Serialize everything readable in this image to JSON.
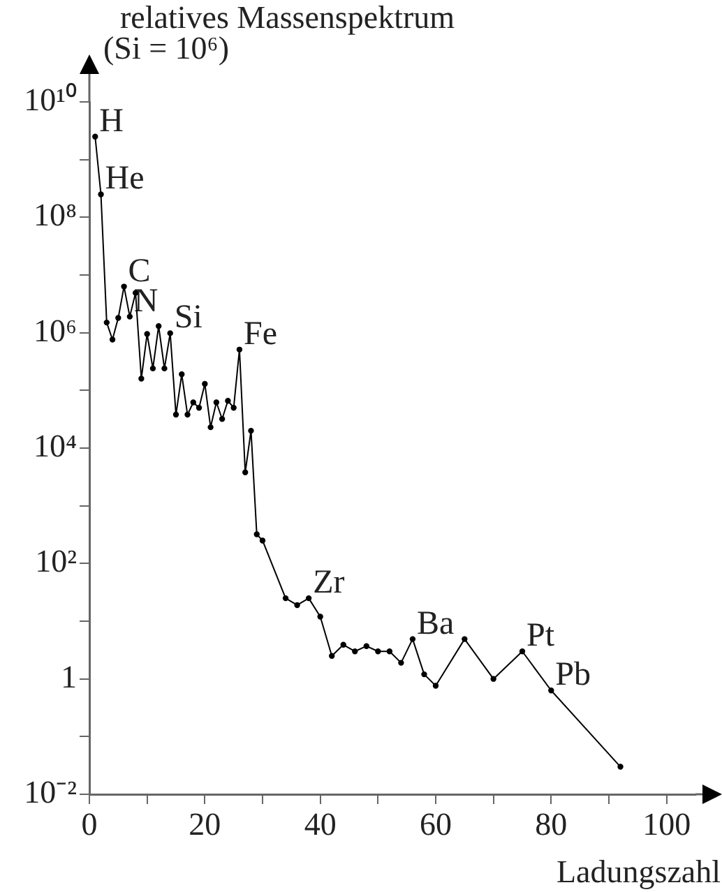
{
  "chart_data": {
    "type": "line",
    "title": "relatives Massenspektrum",
    "ylabel": "(Si = 10⁶)",
    "xlabel": "Ladungszahl",
    "x": [
      1,
      2,
      3,
      4,
      5,
      6,
      7,
      8,
      9,
      10,
      11,
      12,
      13,
      14,
      15,
      16,
      17,
      18,
      19,
      20,
      21,
      22,
      23,
      24,
      25,
      26,
      27,
      28,
      29,
      30,
      34,
      36,
      38,
      40,
      42,
      44,
      46,
      48,
      50,
      52,
      54,
      56,
      58,
      60,
      65,
      70,
      75,
      80,
      92
    ],
    "series": [
      {
        "color": "#000000",
        "values": [
          2500000000.0,
          250000000.0,
          1500000.0,
          760000.0,
          1800000.0,
          6300000.0,
          1900000.0,
          4900000.0,
          160000.0,
          950000.0,
          240000.0,
          1300000.0,
          240000.0,
          980000.0,
          38000.0,
          190000.0,
          38000.0,
          62000.0,
          50000.0,
          130000.0,
          23000.0,
          62000.0,
          32000.0,
          66000.0,
          50000.0,
          510000.0,
          3800.0,
          20000.0,
          320,
          250,
          25,
          19,
          25,
          12,
          2.5,
          3.9,
          3.0,
          3.7,
          3.0,
          3.0,
          1.9,
          4.9,
          1.2,
          0.76,
          4.9,
          1,
          3.0,
          0.63,
          0.03
        ]
      }
    ],
    "log": "y",
    "marker": "circle",
    "line_style": "solid",
    "grid": false,
    "legend": false,
    "xlim": [
      0,
      105
    ],
    "xticks": [
      0,
      {
        "value": 10,
        "label": null
      },
      20,
      {
        "value": 30,
        "label": null
      },
      40,
      {
        "value": 50,
        "label": null
      },
      60,
      {
        "value": 70,
        "label": null
      },
      80,
      {
        "value": 90,
        "label": null
      },
      100
    ],
    "ylim": [
      0.01,
      10000000000.0
    ],
    "yticks": [
      {
        "value": 0.01,
        "label": "10⁻²"
      },
      {
        "value": 0.1,
        "label": null
      },
      1,
      {
        "value": 10,
        "label": null
      },
      {
        "value": 100,
        "label": "10²"
      },
      {
        "value": 1000,
        "label": null
      },
      {
        "value": 10000,
        "label": "10⁴"
      },
      {
        "value": 100000,
        "label": null
      },
      {
        "value": 1000000,
        "label": "10⁶"
      },
      {
        "value": 10000000,
        "label": null
      },
      {
        "value": 100000000,
        "label": "10⁸"
      },
      {
        "value": 1000000000,
        "label": null
      },
      {
        "value": 10000000000,
        "label": "10¹⁰"
      }
    ],
    "annotations": [
      {
        "text": "H",
        "x": 1,
        "y": 2500000000.0
      },
      {
        "text": "He",
        "x": 2,
        "y": 250000000.0
      },
      {
        "text": "C",
        "x": 6,
        "y": 6300000.0
      },
      {
        "text": "N",
        "x": 7,
        "y": 1900000.0
      },
      {
        "text": "Si",
        "x": 14,
        "y": 980000.0
      },
      {
        "text": "Fe",
        "x": 26,
        "y": 510000.0
      },
      {
        "text": "Zr",
        "x": 38,
        "y": 25
      },
      {
        "text": "Ba",
        "x": 56,
        "y": 4.9
      },
      {
        "text": "Pt",
        "x": 75,
        "y": 3.0
      },
      {
        "text": "Pb",
        "x": 80,
        "y": 0.63
      }
    ]
  }
}
